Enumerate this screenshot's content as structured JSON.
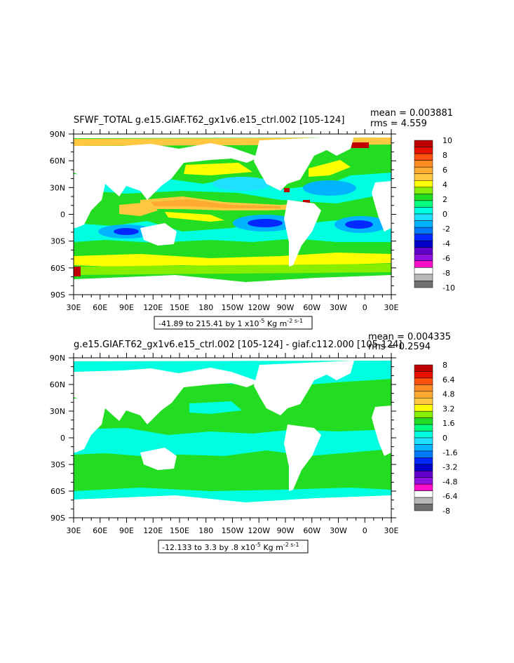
{
  "chart_data": [
    {
      "type": "heatmap",
      "title": "SFWF_TOTAL g.e15.GIAF.T62_gx1v6.e15_ctrl.002 [105-124]",
      "stats": {
        "mean": "mean = 0.003881",
        "rms": "rms = 4.559"
      },
      "x_ticks": [
        "30E",
        "60E",
        "90E",
        "120E",
        "150E",
        "180",
        "150W",
        "120W",
        "90W",
        "60W",
        "30W",
        "0",
        "30E"
      ],
      "y_ticks": [
        "90N",
        "60N",
        "30N",
        "0",
        "30S",
        "60S",
        "90S"
      ],
      "xlim": [
        30,
        390
      ],
      "ylim": [
        -90,
        90
      ],
      "range_label": {
        "text": "-41.89 to 215.41 by 1 x10",
        "exp": "-5",
        "units": " Kg m",
        "units_exp": "-2 s-1"
      },
      "colorbar": {
        "labels": [
          "10",
          "8",
          "6",
          "4",
          "2",
          "0",
          "-2",
          "-4",
          "-6",
          "-8",
          "-10"
        ],
        "colors": [
          "#c00000",
          "#e81000",
          "#ff5010",
          "#ff8c20",
          "#ffaa30",
          "#ffc840",
          "#ffff00",
          "#88ee00",
          "#22dd22",
          "#00ff80",
          "#00ffe0",
          "#20e0ff",
          "#00b4ff",
          "#0078ff",
          "#0028ff",
          "#0000c8",
          "#6000c8",
          "#9010e0",
          "#ff10c8",
          "#ffffff",
          "#b8b8b8",
          "#707070"
        ]
      }
    },
    {
      "type": "heatmap",
      "title": "g.e15.GIAF.T62_gx1v6.e15_ctrl.002 [105-124] - giaf.c112.000 [105-124]",
      "stats": {
        "mean": "mean = 0.004335",
        "rms": "rms = 0.2594"
      },
      "x_ticks": [
        "30E",
        "60E",
        "90E",
        "120E",
        "150E",
        "180",
        "150W",
        "120W",
        "90W",
        "60W",
        "30W",
        "0",
        "30E"
      ],
      "y_ticks": [
        "90N",
        "60N",
        "30N",
        "0",
        "30S",
        "60S",
        "90S"
      ],
      "xlim": [
        30,
        390
      ],
      "ylim": [
        -90,
        90
      ],
      "range_label": {
        "text": "-12.133 to 3.3 by .8 x10",
        "exp": "-5",
        "units": " Kg m",
        "units_exp": "-2 s-1"
      },
      "colorbar": {
        "labels": [
          "8",
          "6.4",
          "4.8",
          "3.2",
          "1.6",
          "0",
          "-1.6",
          "-3.2",
          "-4.8",
          "-6.4",
          "-8"
        ],
        "colors": [
          "#c00000",
          "#e81000",
          "#ff5010",
          "#ff8c20",
          "#ffaa30",
          "#ffc840",
          "#ffff00",
          "#88ee00",
          "#22dd22",
          "#00ff80",
          "#00ffe0",
          "#20e0ff",
          "#00b4ff",
          "#0078ff",
          "#0028ff",
          "#0000c8",
          "#6000c8",
          "#9010e0",
          "#ff10c8",
          "#ffffff",
          "#b8b8b8",
          "#707070"
        ]
      }
    }
  ]
}
